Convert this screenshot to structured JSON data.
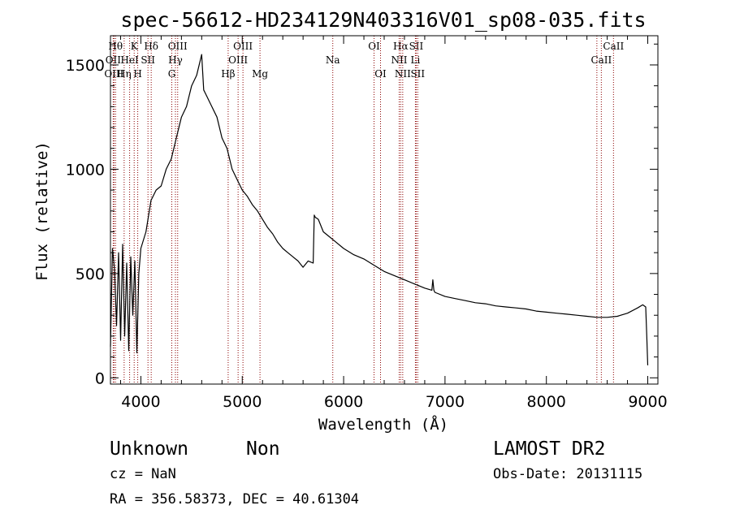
{
  "chart_data": {
    "type": "line",
    "title": "spec-56612-HD234129N403316V01_sp08-035.fits",
    "xlabel": "Wavelength (Å)",
    "ylabel": "Flux (relative)",
    "xlim": [
      3700,
      9100
    ],
    "ylim": [
      -30,
      1640
    ],
    "xticks": [
      4000,
      5000,
      6000,
      7000,
      8000,
      9000
    ],
    "xtick_labels": [
      "4000",
      "5000",
      "6000",
      "7000",
      "8000",
      "9000"
    ],
    "yticks": [
      0,
      500,
      1000,
      1500
    ],
    "ytick_labels": [
      "0",
      "500",
      "1000",
      "1500"
    ],
    "grid": false,
    "series": [
      {
        "x": [
          3700,
          3720,
          3740,
          3760,
          3780,
          3800,
          3820,
          3840,
          3860,
          3880,
          3900,
          3920,
          3940,
          3960,
          3980,
          4000,
          4050,
          4100,
          4150,
          4200,
          4250,
          4300,
          4350,
          4400,
          4450,
          4500,
          4550,
          4600,
          4620,
          4650,
          4700,
          4750,
          4800,
          4850,
          4900,
          4950,
          5000,
          5050,
          5100,
          5150,
          5200,
          5250,
          5300,
          5350,
          5400,
          5450,
          5500,
          5550,
          5600,
          5650,
          5700,
          5710,
          5720,
          5750,
          5800,
          5850,
          5900,
          6000,
          6100,
          6200,
          6300,
          6400,
          6500,
          6600,
          6700,
          6800,
          6870,
          6880,
          6890,
          6900,
          7000,
          7100,
          7200,
          7300,
          7400,
          7500,
          7600,
          7700,
          7800,
          7900,
          8000,
          8100,
          8200,
          8300,
          8400,
          8500,
          8600,
          8700,
          8800,
          8900,
          8950,
          8980,
          8990,
          9000
        ],
        "y": [
          150,
          620,
          520,
          250,
          600,
          180,
          640,
          200,
          550,
          130,
          580,
          300,
          560,
          120,
          500,
          620,
          700,
          850,
          900,
          920,
          1000,
          1050,
          1150,
          1250,
          1300,
          1400,
          1450,
          1550,
          1380,
          1350,
          1300,
          1250,
          1150,
          1100,
          1000,
          950,
          900,
          870,
          830,
          800,
          760,
          720,
          690,
          650,
          620,
          600,
          580,
          560,
          530,
          560,
          550,
          780,
          770,
          760,
          700,
          680,
          660,
          620,
          590,
          570,
          540,
          510,
          490,
          470,
          450,
          430,
          420,
          470,
          420,
          410,
          390,
          380,
          370,
          360,
          355,
          345,
          340,
          335,
          330,
          320,
          315,
          310,
          305,
          300,
          295,
          290,
          290,
          295,
          310,
          335,
          350,
          340,
          200,
          60
        ],
        "color": "#000000"
      }
    ],
    "lines": [
      {
        "name": "Hθ",
        "x": 3750,
        "row": 1
      },
      {
        "name": "OII",
        "x": 3727,
        "row": 2
      },
      {
        "name": "OIII",
        "x": 3735,
        "row": 3
      },
      {
        "name": "Hη",
        "x": 3835,
        "row": 3
      },
      {
        "name": "K",
        "x": 3934,
        "row": 1
      },
      {
        "name": "HeI",
        "x": 3889,
        "row": 2
      },
      {
        "name": "H",
        "x": 3969,
        "row": 3
      },
      {
        "name": "Hδ",
        "x": 4102,
        "row": 1
      },
      {
        "name": "SII",
        "x": 4070,
        "row": 2
      },
      {
        "name": "OIII",
        "x": 4363,
        "row": 1
      },
      {
        "name": "Hγ",
        "x": 4341,
        "row": 2
      },
      {
        "name": "G",
        "x": 4305,
        "row": 3
      },
      {
        "name": "Hβ",
        "x": 4861,
        "row": 3
      },
      {
        "name": "OIII",
        "x": 5007,
        "row": 1
      },
      {
        "name": "OIII",
        "x": 4959,
        "row": 2
      },
      {
        "name": "Mg",
        "x": 5175,
        "row": 3
      },
      {
        "name": "Na",
        "x": 5893,
        "row": 2
      },
      {
        "name": "OI",
        "x": 6300,
        "row": 1
      },
      {
        "name": "OI",
        "x": 6364,
        "row": 3
      },
      {
        "name": "Hα",
        "x": 6563,
        "row": 1
      },
      {
        "name": "NII",
        "x": 6548,
        "row": 2
      },
      {
        "name": "NII",
        "x": 6583,
        "row": 3
      },
      {
        "name": "SII",
        "x": 6716,
        "row": 1
      },
      {
        "name": "Li",
        "x": 6708,
        "row": 2
      },
      {
        "name": "SII",
        "x": 6731,
        "row": 3
      },
      {
        "name": "CaII",
        "x": 8662,
        "row": 1
      },
      {
        "name": "CaII",
        "x": 8542,
        "row": 2
      },
      {
        "name": "",
        "x": 8498,
        "row": 0
      }
    ],
    "line_color": "#8b0000"
  },
  "info": {
    "class": "Unknown",
    "subclass": "Non",
    "cz": "cz = NaN",
    "coords": "RA = 356.58373, DEC =  40.61304",
    "survey": "LAMOST DR2",
    "obs_date": "Obs-Date: 20131115"
  }
}
